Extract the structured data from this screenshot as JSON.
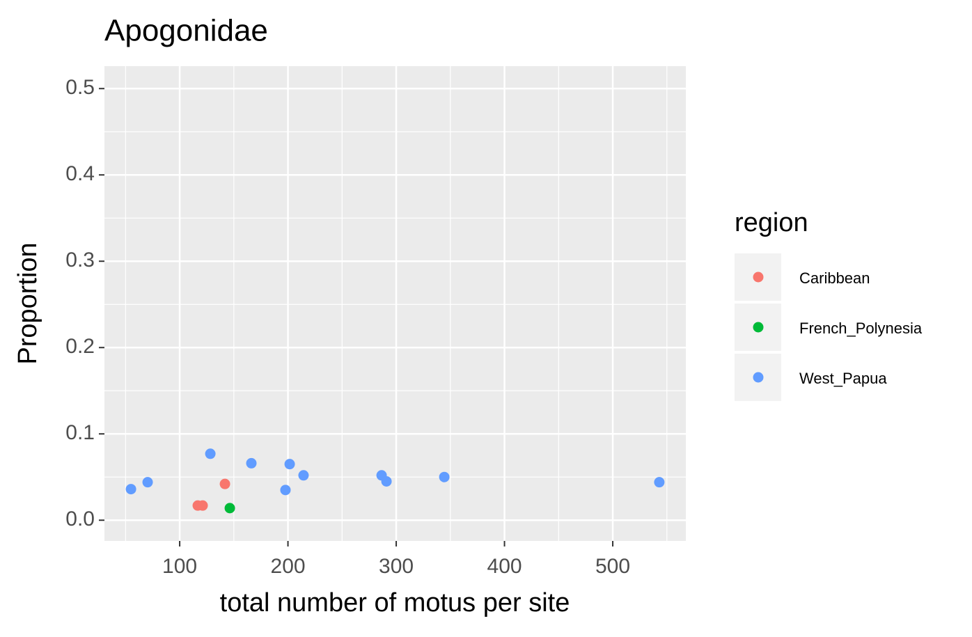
{
  "chart_data": {
    "type": "scatter",
    "title": "Apogonidae",
    "x_label": "total number of motus per site",
    "y_label": "Proportion",
    "legend_title": "region",
    "legend_position": "right",
    "grid": true,
    "xlim": [
      30.5,
      567.5
    ],
    "ylim": [
      -0.024,
      0.526
    ],
    "xticks": [
      100,
      200,
      300,
      400,
      500
    ],
    "yticks": [
      {
        "value": 0,
        "label": "0.0"
      },
      0.1,
      0.2,
      0.3,
      0.4,
      0.5
    ],
    "xminor": [
      50,
      150,
      250,
      350,
      450,
      550
    ],
    "yminor": [
      0.05,
      0.15,
      0.25,
      0.35,
      0.45
    ],
    "series": [
      {
        "name": "Caribbean",
        "color": "#F8766D",
        "x": [
          116.7,
          121.2,
          141.8
        ],
        "values": [
          0.017,
          0.017,
          0.042
        ]
      },
      {
        "name": "French_Polynesia",
        "color": "#00BA38",
        "x": [
          146.3
        ],
        "values": [
          0.014
        ]
      },
      {
        "name": "West_Papua",
        "color": "#619CFF",
        "x": [
          55,
          70.4,
          128.3,
          166.2,
          201.6,
          197.7,
          214.4,
          286.5,
          291,
          344.4,
          543
        ],
        "values": [
          0.036,
          0.044,
          0.077,
          0.066,
          0.065,
          0.035,
          0.052,
          0.052,
          0.045,
          0.05,
          0.044
        ]
      }
    ]
  }
}
